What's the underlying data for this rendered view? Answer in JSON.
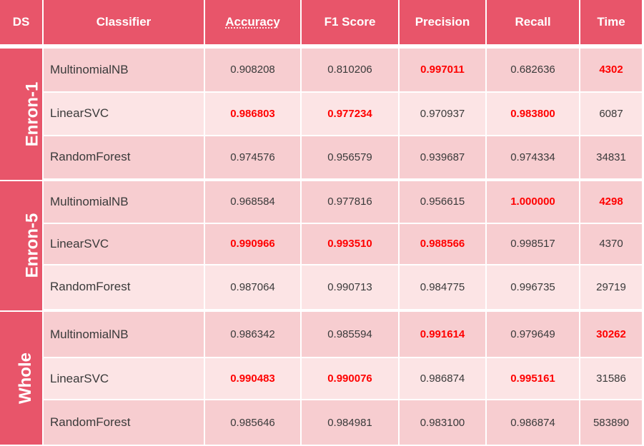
{
  "headers": {
    "ds": "DS",
    "classifier": "Classifier",
    "accuracy": "Accuracy",
    "f1": "F1 Score",
    "precision": "Precision",
    "recall": "Recall",
    "time": "Time"
  },
  "groups": [
    {
      "name": "Enron-1",
      "rows": [
        {
          "classifier": "MultinomialNB",
          "accuracy": "0.908208",
          "f1": "0.810206",
          "precision": "0.997011",
          "recall": "0.682636",
          "time": "4302"
        },
        {
          "classifier": "LinearSVC",
          "accuracy": "0.986803",
          "f1": "0.977234",
          "precision": "0.970937",
          "recall": "0.983800",
          "time": "6087"
        },
        {
          "classifier": "RandomForest",
          "accuracy": "0.974576",
          "f1": "0.956579",
          "precision": "0.939687",
          "recall": "0.974334",
          "time": "34831"
        }
      ]
    },
    {
      "name": "Enron-5",
      "rows": [
        {
          "classifier": "MultinomialNB",
          "accuracy": "0.968584",
          "f1": "0.977816",
          "precision": "0.956615",
          "recall": "1.000000",
          "time": "4298"
        },
        {
          "classifier": "LinearSVC",
          "accuracy": "0.990966",
          "f1": "0.993510",
          "precision": "0.988566",
          "recall": "0.998517",
          "time": "4370"
        },
        {
          "classifier": "RandomForest",
          "accuracy": "0.987064",
          "f1": "0.990713",
          "precision": "0.984775",
          "recall": "0.996735",
          "time": "29719"
        }
      ]
    },
    {
      "name": "Whole",
      "rows": [
        {
          "classifier": "MultinomialNB",
          "accuracy": "0.986342",
          "f1": "0.985594",
          "precision": "0.991614",
          "recall": "0.979649",
          "time": "30262"
        },
        {
          "classifier": "LinearSVC",
          "accuracy": "0.990483",
          "f1": "0.990076",
          "precision": "0.986874",
          "recall": "0.995161",
          "time": "31586"
        },
        {
          "classifier": "RandomForest",
          "accuracy": "0.985646",
          "f1": "0.984981",
          "precision": "0.983100",
          "recall": "0.986874",
          "time": "583890"
        }
      ]
    }
  ],
  "colors": {
    "header_bg": "#e8556a",
    "row_dark": "#f7cdd0",
    "row_light": "#fce4e5",
    "highlight_text": "#ff0000"
  }
}
